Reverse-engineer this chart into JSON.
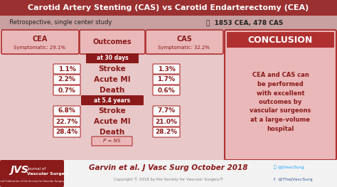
{
  "title": "Carotid Artery Stenting (CAS) vs Carotid Endarterectomy (CEA)",
  "title_bg": "#9B3030",
  "title_color": "#FFFFFF",
  "subtitle": "  Retrospective, single center study",
  "subtitle_count": "1853 CEA, 478 CAS",
  "bg_color": "#E8C8C8",
  "cea_label": "CEA",
  "cea_sub": "Symptomatic: 29.1%",
  "cas_label": "CAS",
  "cas_sub": "Symptomatic: 32.2%",
  "outcomes_label": "Outcomes",
  "period1_label": "at 30 days",
  "period2_label": "at 5.4 years",
  "outcomes_30d": [
    "Stroke",
    "Acute MI",
    "Death"
  ],
  "outcomes_54y": [
    "Stroke",
    "Acute MI",
    "Death"
  ],
  "cea_30d": [
    "1.1%",
    "2.2%",
    "0.7%"
  ],
  "cas_30d": [
    "1.3%",
    "1.7%",
    "0.6%"
  ],
  "cea_54y": [
    "6.8%",
    "22.7%",
    "28.4%"
  ],
  "cas_54y": [
    "7.7%",
    "21.0%",
    "28.2%"
  ],
  "p_value": "P = NS",
  "conclusion_title": "CONCLUSION",
  "conclusion_text": "CEA and CAS can\nbe performed\nwith excellent\noutcomes by\nvascular surgeons\nat a large-volume\nhospital",
  "footer_citation": "Garvin et al. J Vasc Surg October 2018",
  "footer_twitter": "@JVascSurg",
  "footer_facebook": "@TheJVascSurg",
  "footer_copyright": "Copyright © 2018 by the Society for Vascular Surgery®",
  "dark_red": "#8B1A1A",
  "medium_red": "#B03030",
  "light_pink": "#EAB8B8",
  "white": "#FFFFFF",
  "footer_bg": "#F0F0F0"
}
